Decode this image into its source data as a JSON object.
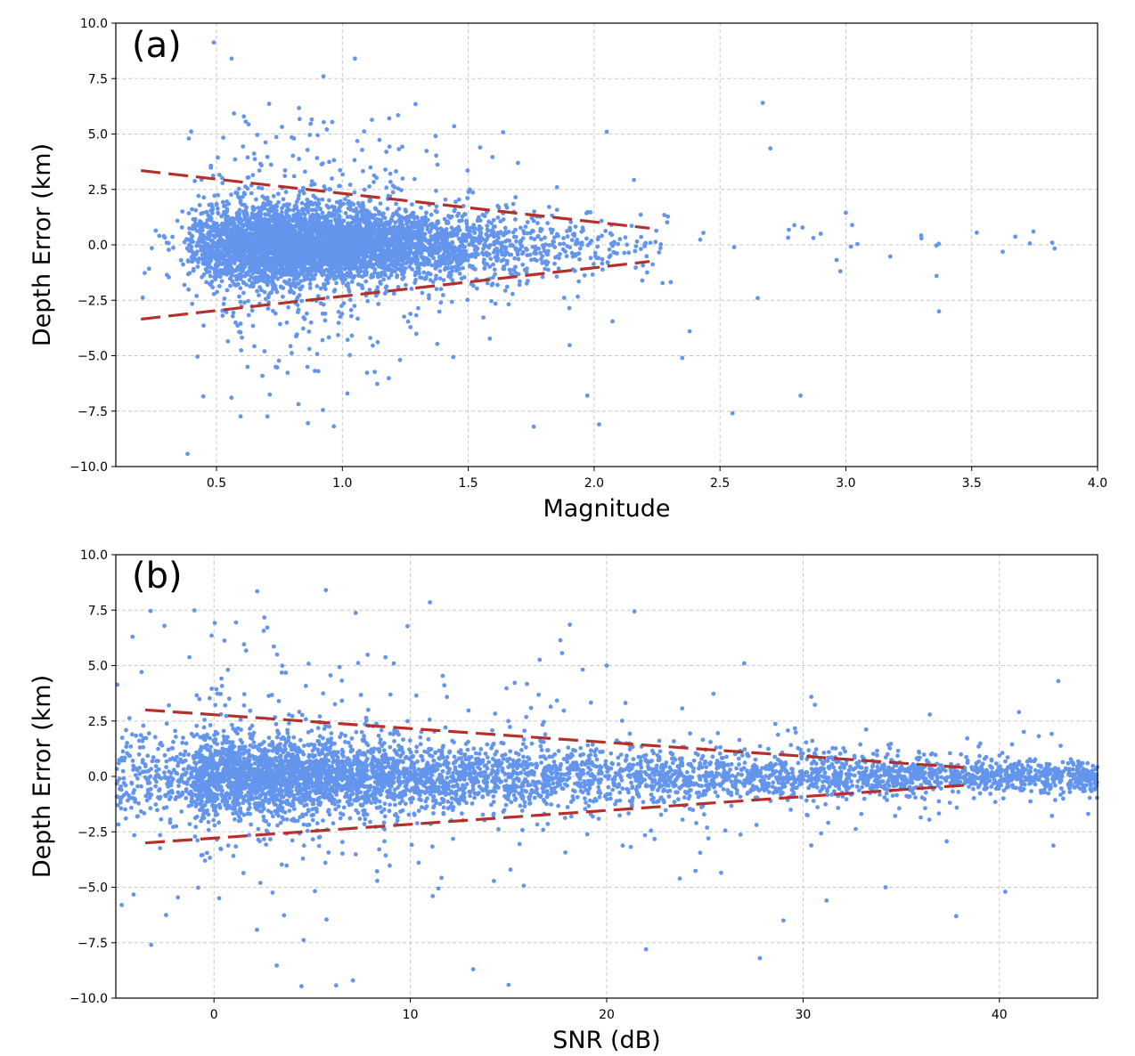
{
  "chart_data": [
    {
      "panel_label": "(a)",
      "type": "scatter",
      "xlabel": "Magnitude",
      "ylabel": "Depth Error (km)",
      "xlim": [
        0.1,
        4.0
      ],
      "ylim": [
        -10.0,
        10.0
      ],
      "xticks": [
        "0.5",
        "1.0",
        "1.5",
        "2.0",
        "2.5",
        "3.0",
        "3.5",
        "4.0"
      ],
      "xtick_values": [
        0.5,
        1.0,
        1.5,
        2.0,
        2.5,
        3.0,
        3.5,
        4.0
      ],
      "yticks": [
        "10.0",
        "7.5",
        "5.0",
        "2.5",
        "0.0",
        "−2.5",
        "−5.0",
        "−7.5",
        "−10.0"
      ],
      "ytick_values": [
        10.0,
        7.5,
        5.0,
        2.5,
        0.0,
        -2.5,
        -5.0,
        -7.5,
        -10.0
      ],
      "grid": true,
      "point_color": "#6495ed",
      "trend_color": "#b5302a",
      "trend_lines": [
        {
          "name": "upper bound",
          "x": [
            0.2,
            2.22
          ],
          "y": [
            3.35,
            0.75
          ]
        },
        {
          "name": "lower bound",
          "x": [
            0.2,
            2.22
          ],
          "y": [
            -3.35,
            -0.75
          ]
        }
      ],
      "point_distribution": {
        "x_range": [
          0.2,
          3.85
        ],
        "dense_core": {
          "x": [
            0.4,
            1.9
          ],
          "y_half_width": [
            1.3,
            0.4
          ]
        },
        "n_points_approx": 6000
      },
      "notable_points": [
        {
          "x": 0.56,
          "y": 8.4
        },
        {
          "x": 1.05,
          "y": 8.4
        },
        {
          "x": 2.67,
          "y": 6.4
        },
        {
          "x": 2.05,
          "y": 5.1
        },
        {
          "x": 2.7,
          "y": 4.35
        },
        {
          "x": 2.55,
          "y": -7.6
        },
        {
          "x": 2.82,
          "y": -6.8
        },
        {
          "x": 2.02,
          "y": -8.1
        },
        {
          "x": 3.37,
          "y": -3.0
        },
        {
          "x": 3.36,
          "y": -1.4
        },
        {
          "x": 3.82,
          "y": 0.1
        },
        {
          "x": 3.52,
          "y": 0.55
        },
        {
          "x": 3.0,
          "y": 1.45
        },
        {
          "x": 2.38,
          "y": -3.9
        },
        {
          "x": 2.35,
          "y": -5.1
        },
        {
          "x": 1.76,
          "y": -8.2
        },
        {
          "x": 2.65,
          "y": -2.4
        },
        {
          "x": 2.9,
          "y": 0.5
        }
      ]
    },
    {
      "panel_label": "(b)",
      "type": "scatter",
      "xlabel": "SNR (dB)",
      "ylabel": "Depth Error (km)",
      "xlim": [
        -5,
        45
      ],
      "ylim": [
        -10.0,
        10.0
      ],
      "xticks": [
        "0",
        "10",
        "20",
        "30",
        "40"
      ],
      "xtick_values": [
        0,
        10,
        20,
        30,
        40
      ],
      "yticks": [
        "10.0",
        "7.5",
        "5.0",
        "2.5",
        "0.0",
        "−2.5",
        "−5.0",
        "−7.5",
        "−10.0"
      ],
      "ytick_values": [
        10.0,
        7.5,
        5.0,
        2.5,
        0.0,
        -2.5,
        -5.0,
        -7.5,
        -10.0
      ],
      "grid": true,
      "point_color": "#6495ed",
      "trend_color": "#b5302a",
      "trend_lines": [
        {
          "name": "upper bound",
          "x": [
            -3.5,
            38.2
          ],
          "y": [
            3.0,
            0.4
          ]
        },
        {
          "name": "lower bound",
          "x": [
            -3.5,
            38.2
          ],
          "y": [
            -3.0,
            -0.4
          ]
        }
      ],
      "point_distribution": {
        "x_range": [
          -5,
          45
        ],
        "dense_core": {
          "x": [
            -1.0,
            44.0
          ],
          "y_half_width": [
            1.3,
            0.4
          ]
        },
        "n_points_approx": 6000
      },
      "notable_points": [
        {
          "x": 5.7,
          "y": 8.4
        },
        {
          "x": 2.2,
          "y": 8.35
        },
        {
          "x": 11.0,
          "y": 7.85
        },
        {
          "x": 43.0,
          "y": 4.3
        },
        {
          "x": 27.0,
          "y": 5.1
        },
        {
          "x": 20.0,
          "y": 5.0
        },
        {
          "x": 37.8,
          "y": -6.3
        },
        {
          "x": 40.3,
          "y": -5.2
        },
        {
          "x": 27.8,
          "y": -8.2
        },
        {
          "x": 29.0,
          "y": -6.5
        },
        {
          "x": 31.2,
          "y": -5.6
        },
        {
          "x": 15.0,
          "y": -9.4
        },
        {
          "x": 13.2,
          "y": -8.7
        },
        {
          "x": 22.0,
          "y": -7.8
        },
        {
          "x": 34.2,
          "y": -5.0
        },
        {
          "x": -4.7,
          "y": -5.8
        },
        {
          "x": -3.2,
          "y": -7.6
        },
        {
          "x": 41.0,
          "y": 2.9
        }
      ]
    }
  ]
}
